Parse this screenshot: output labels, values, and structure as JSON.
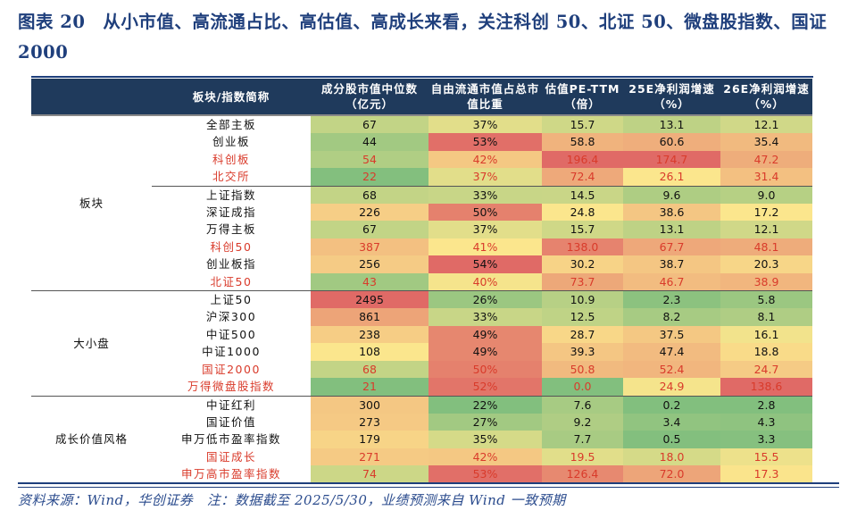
{
  "title": "图表 20　从小市值、高流通占比、高估值、高成长来看，关注科创 50、北证 50、微盘股指数、国证 2000",
  "headers": [
    "",
    "板块/指数简称",
    "成分股市值中位数（亿元）",
    "自由流通市值占总市值比重",
    "估值PE-TTM（倍）",
    "25E净利润增速（%）",
    "26E净利润增速（%）"
  ],
  "color_scale": {
    "low": "#82bf7e",
    "mid": "#fbe68d",
    "high": "#e06a66",
    "highlight_text": "#d93b2b"
  },
  "groups": [
    {
      "label": "板块",
      "rows": [
        {
          "name": "全部主板",
          "red": false,
          "values": [
            "67",
            "37%",
            "15.7",
            "13.1",
            "12.1"
          ]
        },
        {
          "name": "创业板",
          "red": false,
          "values": [
            "44",
            "53%",
            "58.8",
            "60.6",
            "35.4"
          ]
        },
        {
          "name": "科创板",
          "red": true,
          "values": [
            "54",
            "42%",
            "196.4",
            "174.7",
            "47.2"
          ]
        },
        {
          "name": "北交所",
          "red": true,
          "values": [
            "22",
            "37%",
            "72.4",
            "26.1",
            "31.4"
          ]
        },
        {
          "name": "上证指数",
          "red": false,
          "values": [
            "68",
            "33%",
            "14.5",
            "9.6",
            "9.0"
          ]
        },
        {
          "name": "深证成指",
          "red": false,
          "values": [
            "226",
            "50%",
            "24.8",
            "38.6",
            "17.2"
          ]
        },
        {
          "name": "万得主板",
          "red": false,
          "values": [
            "67",
            "37%",
            "15.7",
            "13.1",
            "12.1"
          ]
        },
        {
          "name": "科创50",
          "red": true,
          "values": [
            "387",
            "41%",
            "138.0",
            "67.7",
            "48.1"
          ]
        },
        {
          "name": "创业板指",
          "red": false,
          "values": [
            "256",
            "54%",
            "30.2",
            "38.7",
            "20.3"
          ]
        },
        {
          "name": "北证50",
          "red": true,
          "values": [
            "43",
            "40%",
            "73.7",
            "46.7",
            "38.9"
          ]
        }
      ]
    },
    {
      "label": "大小盘",
      "rows": [
        {
          "name": "上证50",
          "red": false,
          "values": [
            "2495",
            "26%",
            "10.9",
            "2.3",
            "5.8"
          ]
        },
        {
          "name": "沪深300",
          "red": false,
          "values": [
            "861",
            "33%",
            "12.5",
            "8.2",
            "8.1"
          ]
        },
        {
          "name": "中证500",
          "red": false,
          "values": [
            "238",
            "49%",
            "28.7",
            "37.5",
            "16.1"
          ]
        },
        {
          "name": "中证1000",
          "red": false,
          "values": [
            "108",
            "49%",
            "39.3",
            "47.4",
            "18.8"
          ]
        },
        {
          "name": "国证2000",
          "red": true,
          "values": [
            "68",
            "50%",
            "50.8",
            "52.4",
            "24.7"
          ]
        },
        {
          "name": "万得微盘股指数",
          "red": true,
          "values": [
            "21",
            "52%",
            "0.0",
            "24.9",
            "138.6"
          ]
        }
      ]
    },
    {
      "label": "成长价值风格",
      "rows": [
        {
          "name": "中证红利",
          "red": false,
          "values": [
            "300",
            "22%",
            "7.6",
            "0.2",
            "2.8"
          ]
        },
        {
          "name": "国证价值",
          "red": false,
          "values": [
            "273",
            "27%",
            "9.2",
            "3.4",
            "4.3"
          ]
        },
        {
          "name": "申万低市盈率指数",
          "red": false,
          "values": [
            "179",
            "35%",
            "7.7",
            "0.5",
            "3.3"
          ]
        },
        {
          "name": "国证成长",
          "red": true,
          "values": [
            "271",
            "42%",
            "19.5",
            "18.0",
            "15.5"
          ]
        },
        {
          "name": "申万高市盈率指数",
          "red": true,
          "values": [
            "74",
            "53%",
            "126.4",
            "72.0",
            "17.3"
          ]
        }
      ]
    }
  ],
  "footnote": "资料来源：Wind，华创证券　注：数据截至 2025/5/30，业绩预测来自 Wind 一致预期"
}
